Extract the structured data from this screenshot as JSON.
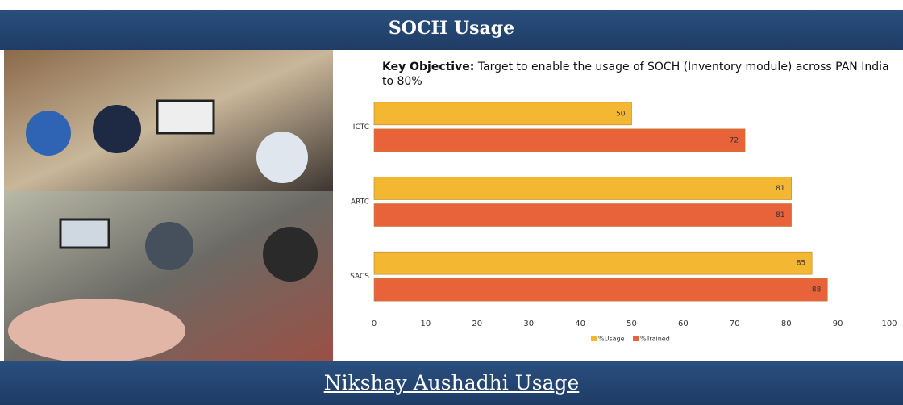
{
  "header": {
    "title": "SOCH Usage"
  },
  "footer": {
    "title": "Nikshay Aushadhi Usage"
  },
  "chart_data": {
    "type": "bar",
    "orientation": "horizontal",
    "annotation_label": "Key Objective:",
    "annotation": "Target to enable the usage of SOCH (Inventory module) across PAN India to 80%",
    "categories": [
      "ICTC",
      "ARTC",
      "SACS"
    ],
    "series": [
      {
        "name": "%Usage",
        "color": "#f4b731",
        "values": [
          50,
          81,
          85
        ]
      },
      {
        "name": "%Trained",
        "color": "#e8623a",
        "values": [
          72,
          81,
          88
        ]
      }
    ],
    "xlim": [
      0,
      100
    ],
    "xticks": [
      0,
      10,
      20,
      30,
      40,
      50,
      60,
      70,
      80,
      90,
      100
    ],
    "grid": false,
    "legend": "bottom"
  }
}
